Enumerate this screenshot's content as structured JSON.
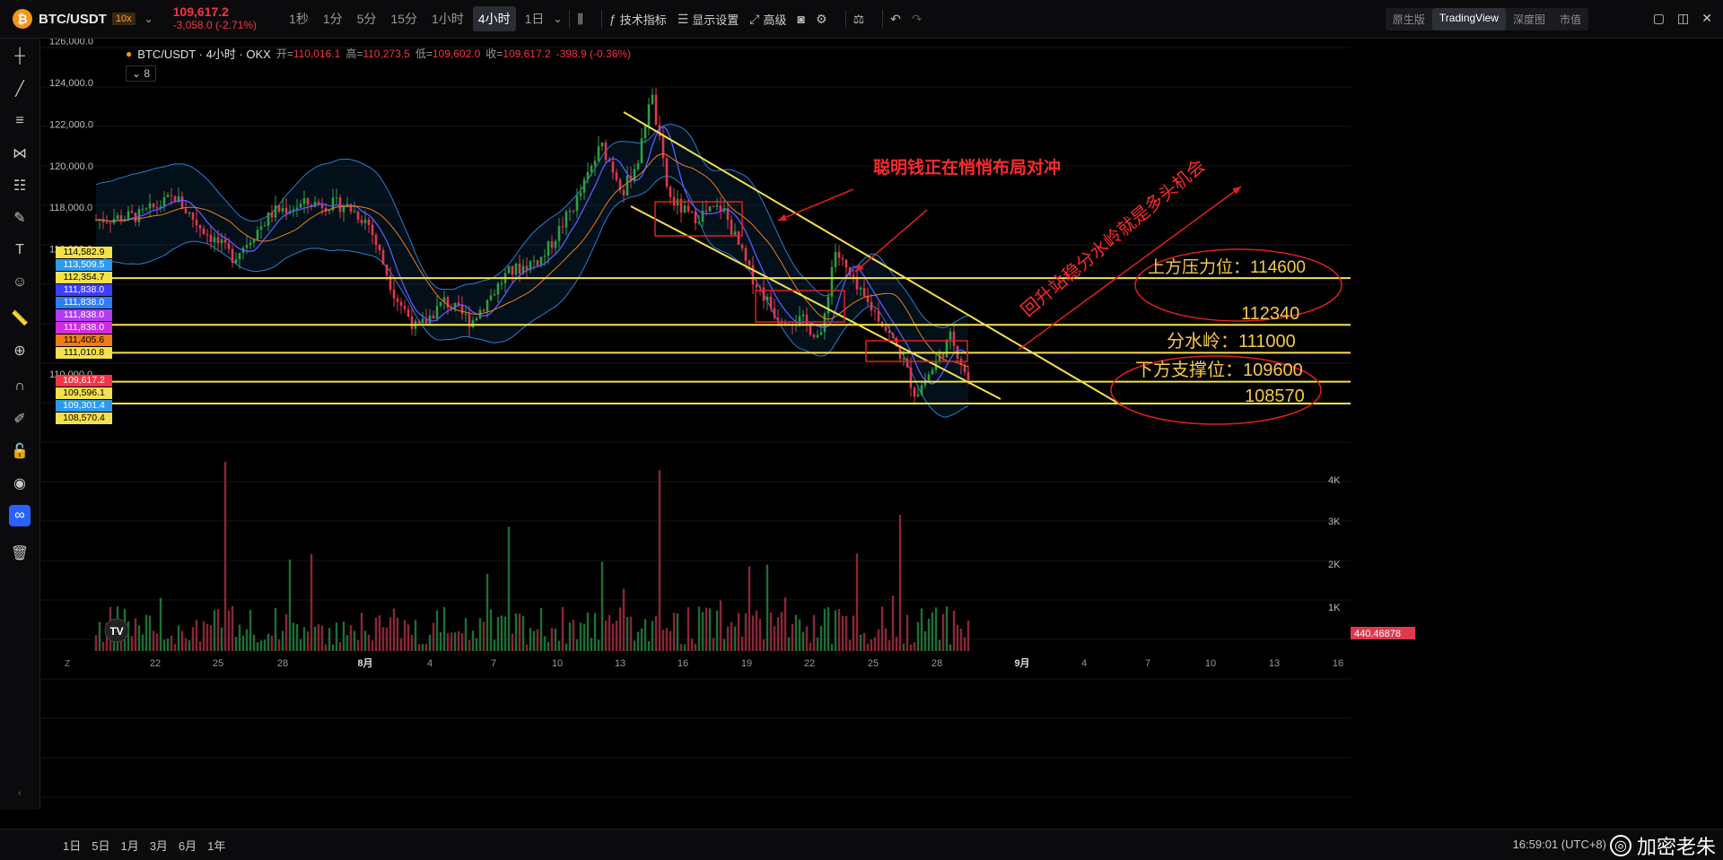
{
  "header": {
    "symbol": "BTC/USDT",
    "leverage": "10x",
    "last_price": "109,617.2",
    "change": "-3,058.0 (-2.71%)",
    "timeframes": [
      {
        "label": "1秒",
        "active": false
      },
      {
        "label": "1分",
        "active": false
      },
      {
        "label": "5分",
        "active": false
      },
      {
        "label": "15分",
        "active": false
      },
      {
        "label": "1小时",
        "active": false
      },
      {
        "label": "4小时",
        "active": true
      },
      {
        "label": "1日",
        "active": false
      }
    ],
    "tools": {
      "indicators": "技术指标",
      "display": "显示设置",
      "advanced": "高级"
    },
    "modes": [
      {
        "label": "原生版",
        "active": false
      },
      {
        "label": "TradingView",
        "active": true
      },
      {
        "label": "深度图",
        "active": false
      },
      {
        "label": "市值",
        "active": false
      }
    ]
  },
  "legend": {
    "title": "BTC/USDT · 4小时 · OKX",
    "open_label": "开=",
    "open": "110,016.1",
    "high_label": "高=",
    "high": "110,273.5",
    "low_label": "低=",
    "low": "109,602.0",
    "close_label": "收=",
    "close": "109,617.2",
    "change": "-398.9 (-0.36%)",
    "indicator_count": "8"
  },
  "chart_data": {
    "type": "candlestick",
    "y_ticks": [
      "126,000.0",
      "124,000.0",
      "122,000.0",
      "120,000.0",
      "118,000.0",
      "116,000.0",
      "110,000.0"
    ],
    "x_ticks": [
      "22",
      "25",
      "28",
      "8月",
      "4",
      "7",
      "10",
      "13",
      "16",
      "19",
      "22",
      "25",
      "28",
      "9月",
      "4",
      "7",
      "10",
      "13",
      "16"
    ],
    "volume_ticks": [
      "4K",
      "3K",
      "2K",
      "1K"
    ],
    "volume_last": "440.46878",
    "price_labels": [
      {
        "value": "114,582.9",
        "color": "#f5e14b"
      },
      {
        "value": "113,509.5",
        "color": "#2a9bf0"
      },
      {
        "value": "112,354.7",
        "color": "#f5e14b"
      },
      {
        "value": "111,838.0",
        "color": "#3d3dff"
      },
      {
        "value": "111,838.0",
        "color": "#2e7cf6"
      },
      {
        "value": "111,838.0",
        "color": "#b23cf2"
      },
      {
        "value": "111,838.0",
        "color": "#d02ce0"
      },
      {
        "value": "111,405.6",
        "color": "#f07d18"
      },
      {
        "value": "111,010.8",
        "color": "#f5e14b"
      },
      {
        "value": "109,617.2",
        "color": "#f23645"
      },
      {
        "value": "109,596.1",
        "color": "#f5e14b"
      },
      {
        "value": "109,301.4",
        "color": "#2a9bf0"
      },
      {
        "value": "108,570.4",
        "color": "#f5e14b"
      }
    ],
    "annotations": {
      "smart_money": "聪明钱正在悄悄布局对冲",
      "opportunity": "回升站稳分水岭就是多头机会",
      "resistance": "上方压力位：114600",
      "level_112340": "112340",
      "watershed": "分水岭：111000",
      "support": "下方支撑位：109600",
      "level_108570": "108570"
    }
  },
  "bottom": {
    "ranges": [
      "1日",
      "5日",
      "1月",
      "3月",
      "6月",
      "1年"
    ],
    "clock": "16:59:01 (UTC+8)",
    "watermark": "加密老朱"
  }
}
